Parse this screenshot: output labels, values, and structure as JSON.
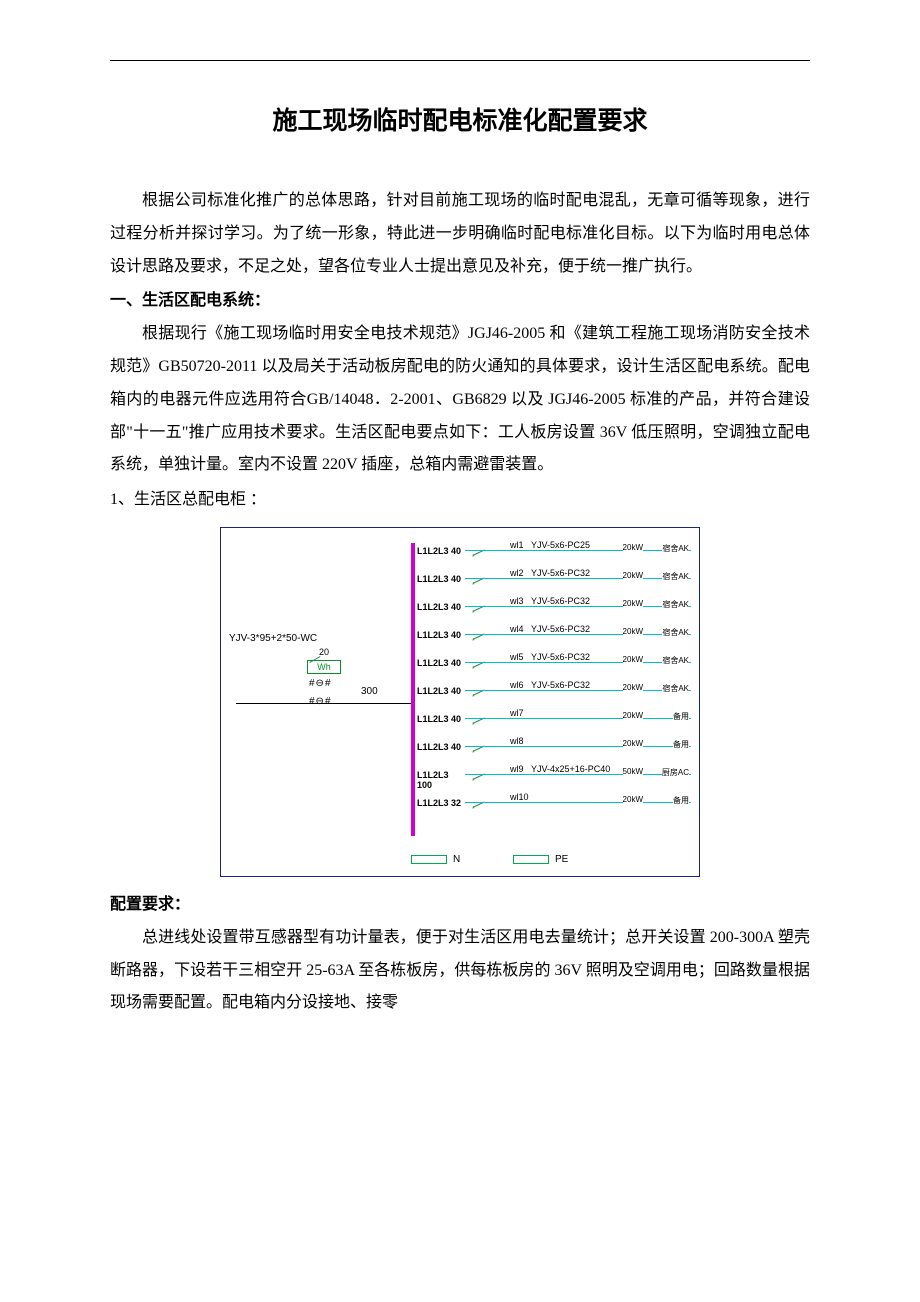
{
  "title": "施工现场临时配电标准化配置要求",
  "intro": "根据公司标准化推广的总体思路，针对目前施工现场的临时配电混乱，无章可循等现象，进行过程分析并探讨学习。为了统一形象，特此进一步明确临时配电标准化目标。以下为临时用电总体设计思路及要求，不足之处，望各位专业人士提出意见及补充，便于统一推广执行。",
  "sec1_head": "一、生活区配电系统：",
  "sec1_body": "根据现行《施工现场临时用安全电技术规范》JGJ46-2005 和《建筑工程施工现场消防安全技术规范》GB50720-2011 以及局关于活动板房配电的防火通知的具体要求，设计生活区配电系统。配电箱内的电器元件应选用符合GB/14048．2-2001、GB6829 以及 JGJ46-2005 标准的产品，并符合建设部\"十一五\"推广应用技术要求。生活区配电要点如下：工人板房设置 36V 低压照明，空调独立配电系统，单独计量。室内不设置 220V 插座，总箱内需避雷装置。",
  "sec1_item1": "1、生活区总配电柜 ：",
  "req_head": "配置要求：",
  "req_body": "总进线处设置带互感器型有功计量表，便于对生活区用电去量统计；总开关设置 200-300A 塑壳断路器，下设若干三相空开 25-63A 至各栋板房，供每栋板房的 36V 照明及空调用电；回路数量根据现场需要配置。配电箱内分设接地、接零",
  "diagram": {
    "incoming_cable": "YJV-3*95+2*50-WC",
    "incoming_breaker": "20",
    "meter_label": "Wh",
    "symbol": "#⊖#",
    "main_breaker": "300",
    "busbar_color": "#d000d0",
    "wire_color": "#00bcd4",
    "accent_color": "#0a9030",
    "border_color": "#1a237e",
    "circuits": [
      {
        "breaker": "L1L2L3  40",
        "id": "wl1",
        "cable": "YJV-5x6-PC25",
        "load": "20kW",
        "dest": "宿舍AK"
      },
      {
        "breaker": "L1L2L3  40",
        "id": "wl2",
        "cable": "YJV-5x6-PC32",
        "load": "20kW",
        "dest": "宿舍AK"
      },
      {
        "breaker": "L1L2L3  40",
        "id": "wl3",
        "cable": "YJV-5x6-PC32",
        "load": "20kW",
        "dest": "宿舍AK"
      },
      {
        "breaker": "L1L2L3  40",
        "id": "wl4",
        "cable": "YJV-5x6-PC32",
        "load": "20kW",
        "dest": "宿舍AK"
      },
      {
        "breaker": "L1L2L3  40",
        "id": "wl5",
        "cable": "YJV-5x6-PC32",
        "load": "20kW",
        "dest": "宿舍AK"
      },
      {
        "breaker": "L1L2L3  40",
        "id": "wl6",
        "cable": "YJV-5x6-PC32",
        "load": "20kW",
        "dest": "宿舍AK"
      },
      {
        "breaker": "L1L2L3  40",
        "id": "wl7",
        "cable": "",
        "load": "20kW",
        "dest": "备用"
      },
      {
        "breaker": "L1L2L3  40",
        "id": "wl8",
        "cable": "",
        "load": "20kW",
        "dest": "备用"
      },
      {
        "breaker": "L1L2L3 100",
        "id": "wl9",
        "cable": "YJV-4x25+16-PC40",
        "load": "50kW",
        "dest": "厨房AC"
      },
      {
        "breaker": "L1L2L3  32",
        "id": "wl10",
        "cable": "",
        "load": "20kW",
        "dest": "备用"
      }
    ],
    "legend_n": "N",
    "legend_pe": "PE"
  }
}
